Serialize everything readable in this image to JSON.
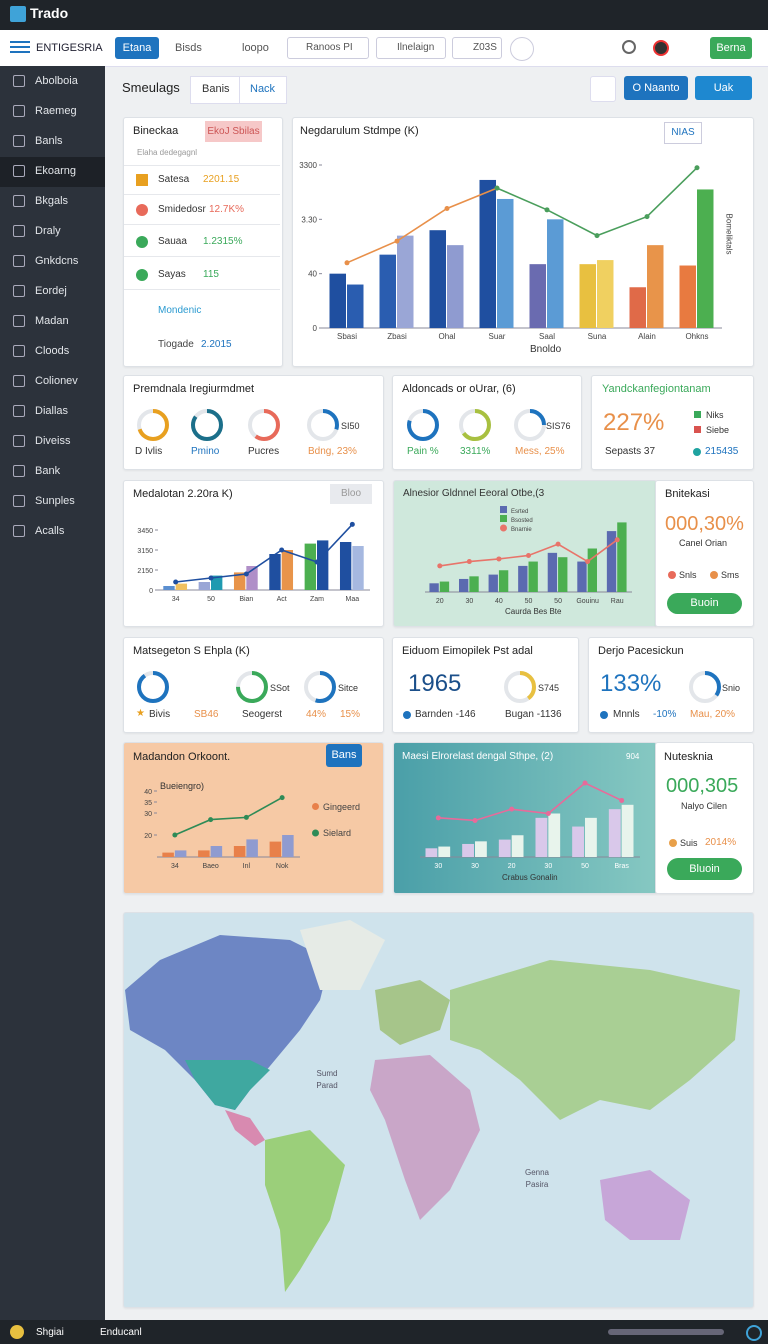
{
  "topbar": {
    "logo": "Trado"
  },
  "navbar": {
    "brand": "ENTIGESRIA",
    "tabs": [
      "Etana",
      "Bisds",
      "loopo",
      "Ranoos PI",
      "Ilnelaign",
      "Z03S"
    ],
    "button": "Berna"
  },
  "sidebar": {
    "items": [
      "Abolboia",
      "Raemeg",
      "Banls",
      "Ekoarng",
      "Bkgals",
      "Draly",
      "Gnkdcns",
      "Eordej",
      "Madan",
      "Cloods",
      "Colionev",
      "Diallas",
      "Diveiss",
      "Bank",
      "Sunples",
      "Acalls"
    ],
    "active": 3
  },
  "subheader": {
    "title": "Smeulags",
    "tabs": [
      "Banis",
      "Nack"
    ],
    "buttons": [
      "O Naanto",
      "Uak"
    ]
  },
  "summary": {
    "title": "Bineckaa",
    "badge": "EkoJ Sbilas",
    "subtitle": "Elaha dedegagnl",
    "items": [
      {
        "label": "Satesa",
        "value": "2201.15"
      },
      {
        "label": "Smidedosr",
        "value": "12.7K%"
      },
      {
        "label": "Sauaa",
        "value": "1.2315%"
      },
      {
        "label": "Sayas",
        "value": "115"
      }
    ],
    "link": "Mondenic",
    "footer": {
      "label": "Tiogade",
      "value": "2.2015"
    }
  },
  "gauge_cards": [
    {
      "title": "Premdnala Iregiurmdmet",
      "labels": [
        "D Ivlis",
        "Pmino",
        "Pucres",
        "Bdng, 23%"
      ],
      "centers": [
        "SI50"
      ]
    },
    {
      "title": "Aldoncads or oUrar, (6)",
      "labels": [
        "Pain %",
        "3311%",
        "Mess, 25%"
      ],
      "centers": [
        "SIS76"
      ]
    },
    {
      "title": "Matsegeton S Ehpla (K)",
      "labels": [
        "Bivis",
        "SB46",
        "Seogerst",
        "44%",
        "15%"
      ],
      "centers": [
        "SSot",
        "Sitce"
      ]
    }
  ],
  "stats_card": {
    "title": "Yandckanfegiontanam",
    "value": "227%",
    "legend": [
      "Niks",
      "Siebe"
    ],
    "footer": [
      "Sepasts 37",
      "215435"
    ]
  },
  "metric_cards": [
    {
      "title": "Eiduom Eimopilek Pst adal",
      "value": "1965",
      "gauge": "S745",
      "footer": [
        "Barnden -146",
        "Bugan -1136"
      ]
    },
    {
      "title": "Derjo Pacesickun",
      "value": "133%",
      "gauge": "Snio",
      "footer": [
        "Mnnls",
        "-10%",
        "Mau, 20%"
      ]
    }
  ],
  "kpi_cards": [
    {
      "title": "Bnitekasi",
      "value": "000,30%",
      "subtitle": "Canel Orian",
      "legend": [
        "Snls",
        "Sms"
      ],
      "button": "Buoin"
    },
    {
      "title": "Nutesknia",
      "value": "000,305",
      "subtitle": "Nalyo Cilen",
      "legend": [
        "Suis",
        "2014%"
      ],
      "button": "Bluoin"
    }
  ],
  "chart_data": [
    {
      "type": "bar",
      "title": "Negdarulum Stdmpe (K)",
      "button": "NIAS",
      "xlabel": "Bnoldo",
      "y2label": "Bomeliktals",
      "categories": [
        "Sbasi",
        "Zbasi",
        "Ohal",
        "Suar",
        "Saal",
        "Suna",
        "Alain",
        "Ohkns"
      ],
      "ylim": [
        0,
        120
      ],
      "yticks": [
        0,
        40,
        {
          "value": 80,
          "label": "3.30"
        },
        {
          "value": 120,
          "label": "3300"
        }
      ],
      "series": [
        {
          "mark": "bar",
          "colors": [
            "#1f4fa0",
            "#2a5db0",
            "#1f4fa0",
            "#1f4fa0",
            "#6a6bb0",
            "#e8c040",
            "#e06a48",
            "#e87a40"
          ],
          "values": [
            40,
            54,
            72,
            109,
            47,
            47,
            30,
            46
          ]
        },
        {
          "mark": "bar",
          "colors": [
            "#2a5db0",
            "#9aa6d6",
            "#8f9bd0",
            "#5b9bd5",
            "#5b9bd5",
            "#f0d060",
            "#e8944a",
            "#4caf50"
          ],
          "values": [
            32,
            68,
            61,
            95,
            80,
            50,
            61,
            102
          ]
        },
        {
          "mark": "line",
          "color": "#e8904a",
          "values": [
            48,
            64,
            88,
            103,
            null,
            null,
            null,
            null
          ]
        },
        {
          "mark": "line",
          "color": "#4a9e5c",
          "values": [
            null,
            null,
            null,
            103,
            87,
            68,
            82,
            118
          ]
        }
      ]
    },
    {
      "type": "bar",
      "title": "Medalotan 2.20ra K)",
      "button": "Bloo",
      "categories": [
        "34",
        "50",
        "Bian",
        "Act",
        "Zam",
        "Maa"
      ],
      "ylim": [
        0,
        100
      ],
      "yticks": [
        0,
        {
          "value": 25,
          "label": "2150"
        },
        {
          "value": 50,
          "label": "3150"
        },
        {
          "value": 75,
          "label": "3450"
        }
      ],
      "series": [
        {
          "mark": "bar",
          "colors": [
            "#5b8fd0",
            "#9aa6d6",
            "#e8944a",
            "#1f4fa0",
            "#4caf50",
            "#1f4fa0"
          ],
          "values": [
            5,
            10,
            22,
            45,
            58,
            60
          ]
        },
        {
          "mark": "bar",
          "colors": [
            "#f0c060",
            "#1f9ab0",
            "#b08fc8",
            "#e8944a",
            "#1f4fa0",
            "#a6b8e0"
          ],
          "values": [
            8,
            18,
            30,
            50,
            62,
            55
          ]
        },
        {
          "mark": "line",
          "color": "#1f4fa0",
          "values": [
            10,
            15,
            20,
            50,
            35,
            82
          ]
        }
      ]
    },
    {
      "type": "bar",
      "title": "Alnesior Gldnnel Eeoral Otbe,(3",
      "xlabel": "Caurda Bes Bte",
      "categories": [
        "20",
        "30",
        "40",
        "50",
        "50",
        "Gouinu",
        "Rau"
      ],
      "ylim": [
        0,
        100
      ],
      "series": [
        {
          "mark": "bar",
          "name": "Esrted",
          "color": "#5b6ab0",
          "values": [
            10,
            15,
            20,
            30,
            45,
            35,
            70
          ]
        },
        {
          "mark": "bar",
          "name": "Bsosted",
          "color": "#4caf50",
          "values": [
            12,
            18,
            25,
            35,
            40,
            50,
            80
          ]
        },
        {
          "mark": "line",
          "name": "Bnarnie",
          "color": "#e8746a",
          "values": [
            30,
            35,
            38,
            42,
            55,
            35,
            60
          ]
        }
      ]
    },
    {
      "type": "bar",
      "title": "Madandon Orkoont.",
      "button": "Bans",
      "subtitle": "Bueiengro)",
      "categories": [
        "34",
        "Baeo",
        "Inl",
        "Nok"
      ],
      "ylim": [
        10,
        45
      ],
      "yticks": [
        20,
        30,
        35,
        40
      ],
      "series": [
        {
          "mark": "bar",
          "name": "Gingeerd",
          "color": "#e8804a",
          "values": [
            12,
            13,
            15,
            17
          ]
        },
        {
          "mark": "bar",
          "color": "#8f9bd0",
          "values": [
            13,
            15,
            18,
            20
          ]
        },
        {
          "mark": "line",
          "name": "Sielard",
          "color": "#2e8b57",
          "values": [
            20,
            27,
            28,
            37
          ]
        }
      ]
    },
    {
      "type": "bar",
      "title": "Maesi Elrorelast dengal Sthpe, (2)",
      "note": "904",
      "xlabel": "Crabus Gonalin",
      "categories": [
        "30",
        "30",
        "20",
        "30",
        "50",
        "Bras"
      ],
      "ylim": [
        0,
        100
      ],
      "series": [
        {
          "mark": "bar",
          "color": "#d9c8ea",
          "values": [
            10,
            15,
            20,
            45,
            35,
            55
          ]
        },
        {
          "mark": "bar",
          "color": "#e8f4ec",
          "values": [
            12,
            18,
            25,
            50,
            45,
            60
          ]
        },
        {
          "mark": "line",
          "color": "#e86a9a",
          "values": [
            45,
            42,
            55,
            50,
            85,
            65
          ]
        }
      ]
    }
  ],
  "map": {
    "labels": [
      "Sumd Parad",
      "Genna Pasira"
    ]
  },
  "bottombar": {
    "items": [
      "Shgiai",
      "Enducanl"
    ]
  }
}
